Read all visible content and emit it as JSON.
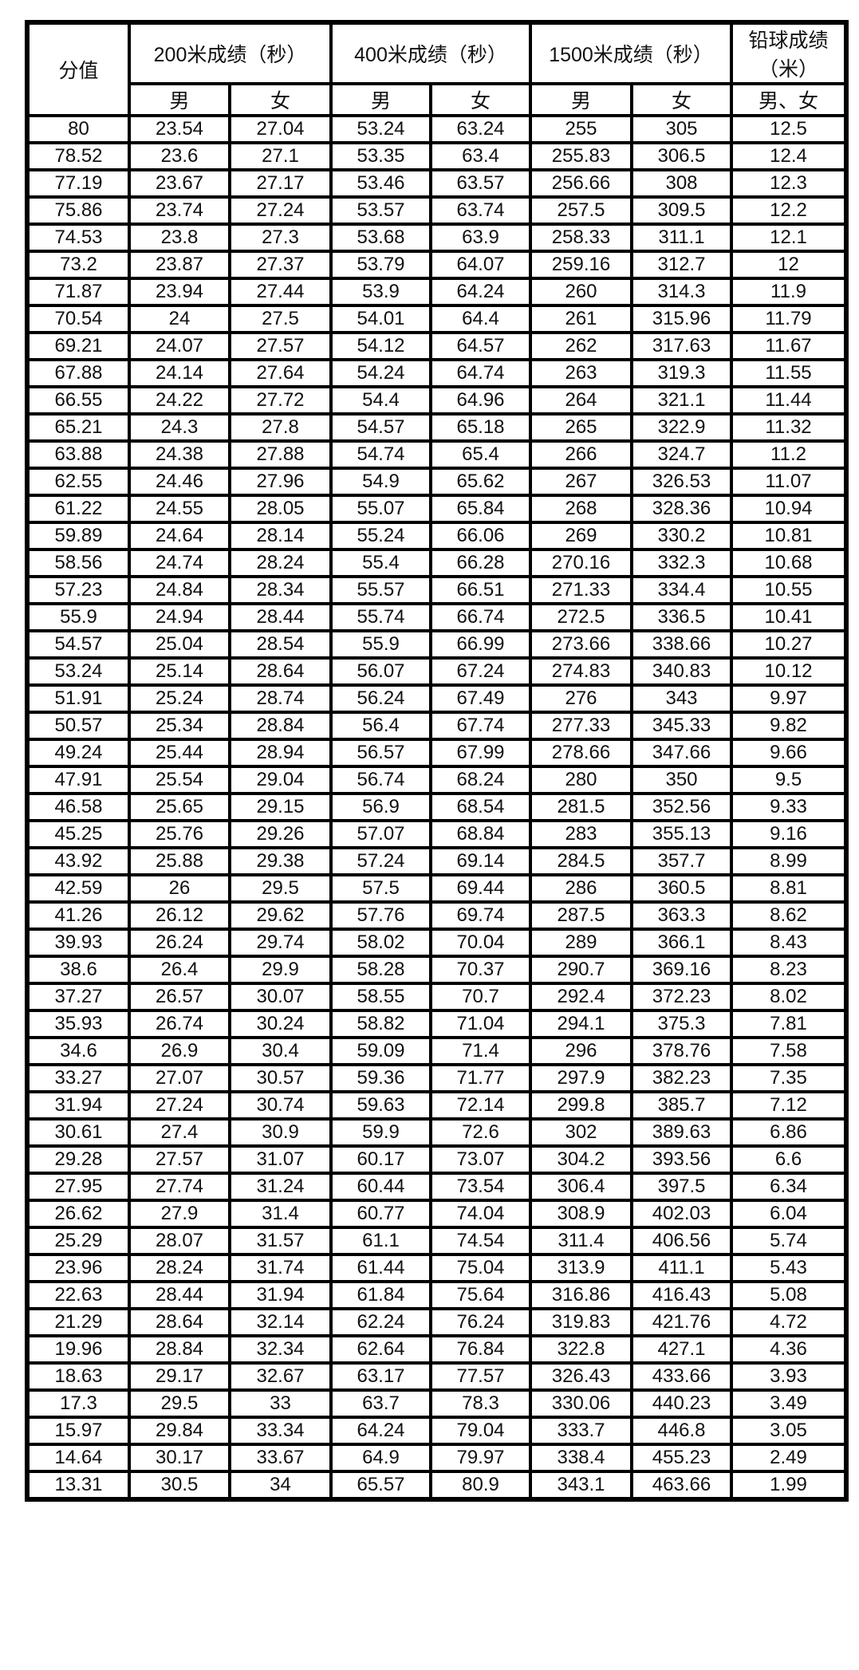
{
  "header": {
    "score": "分值",
    "groups": [
      "200米成绩（秒）",
      "400米成绩（秒）",
      "1500米成绩（秒）",
      "铅球成绩（米）"
    ],
    "sub": [
      "男",
      "女",
      "男",
      "女",
      "男",
      "女",
      "男、女"
    ]
  },
  "rows": [
    [
      "80",
      "23.54",
      "27.04",
      "53.24",
      "63.24",
      "255",
      "305",
      "12.5"
    ],
    [
      "78.52",
      "23.6",
      "27.1",
      "53.35",
      "63.4",
      "255.83",
      "306.5",
      "12.4"
    ],
    [
      "77.19",
      "23.67",
      "27.17",
      "53.46",
      "63.57",
      "256.66",
      "308",
      "12.3"
    ],
    [
      "75.86",
      "23.74",
      "27.24",
      "53.57",
      "63.74",
      "257.5",
      "309.5",
      "12.2"
    ],
    [
      "74.53",
      "23.8",
      "27.3",
      "53.68",
      "63.9",
      "258.33",
      "311.1",
      "12.1"
    ],
    [
      "73.2",
      "23.87",
      "27.37",
      "53.79",
      "64.07",
      "259.16",
      "312.7",
      "12"
    ],
    [
      "71.87",
      "23.94",
      "27.44",
      "53.9",
      "64.24",
      "260",
      "314.3",
      "11.9"
    ],
    [
      "70.54",
      "24",
      "27.5",
      "54.01",
      "64.4",
      "261",
      "315.96",
      "11.79"
    ],
    [
      "69.21",
      "24.07",
      "27.57",
      "54.12",
      "64.57",
      "262",
      "317.63",
      "11.67"
    ],
    [
      "67.88",
      "24.14",
      "27.64",
      "54.24",
      "64.74",
      "263",
      "319.3",
      "11.55"
    ],
    [
      "66.55",
      "24.22",
      "27.72",
      "54.4",
      "64.96",
      "264",
      "321.1",
      "11.44"
    ],
    [
      "65.21",
      "24.3",
      "27.8",
      "54.57",
      "65.18",
      "265",
      "322.9",
      "11.32"
    ],
    [
      "63.88",
      "24.38",
      "27.88",
      "54.74",
      "65.4",
      "266",
      "324.7",
      "11.2"
    ],
    [
      "62.55",
      "24.46",
      "27.96",
      "54.9",
      "65.62",
      "267",
      "326.53",
      "11.07"
    ],
    [
      "61.22",
      "24.55",
      "28.05",
      "55.07",
      "65.84",
      "268",
      "328.36",
      "10.94"
    ],
    [
      "59.89",
      "24.64",
      "28.14",
      "55.24",
      "66.06",
      "269",
      "330.2",
      "10.81"
    ],
    [
      "58.56",
      "24.74",
      "28.24",
      "55.4",
      "66.28",
      "270.16",
      "332.3",
      "10.68"
    ],
    [
      "57.23",
      "24.84",
      "28.34",
      "55.57",
      "66.51",
      "271.33",
      "334.4",
      "10.55"
    ],
    [
      "55.9",
      "24.94",
      "28.44",
      "55.74",
      "66.74",
      "272.5",
      "336.5",
      "10.41"
    ],
    [
      "54.57",
      "25.04",
      "28.54",
      "55.9",
      "66.99",
      "273.66",
      "338.66",
      "10.27"
    ],
    [
      "53.24",
      "25.14",
      "28.64",
      "56.07",
      "67.24",
      "274.83",
      "340.83",
      "10.12"
    ],
    [
      "51.91",
      "25.24",
      "28.74",
      "56.24",
      "67.49",
      "276",
      "343",
      "9.97"
    ],
    [
      "50.57",
      "25.34",
      "28.84",
      "56.4",
      "67.74",
      "277.33",
      "345.33",
      "9.82"
    ],
    [
      "49.24",
      "25.44",
      "28.94",
      "56.57",
      "67.99",
      "278.66",
      "347.66",
      "9.66"
    ],
    [
      "47.91",
      "25.54",
      "29.04",
      "56.74",
      "68.24",
      "280",
      "350",
      "9.5"
    ],
    [
      "46.58",
      "25.65",
      "29.15",
      "56.9",
      "68.54",
      "281.5",
      "352.56",
      "9.33"
    ],
    [
      "45.25",
      "25.76",
      "29.26",
      "57.07",
      "68.84",
      "283",
      "355.13",
      "9.16"
    ],
    [
      "43.92",
      "25.88",
      "29.38",
      "57.24",
      "69.14",
      "284.5",
      "357.7",
      "8.99"
    ],
    [
      "42.59",
      "26",
      "29.5",
      "57.5",
      "69.44",
      "286",
      "360.5",
      "8.81"
    ],
    [
      "41.26",
      "26.12",
      "29.62",
      "57.76",
      "69.74",
      "287.5",
      "363.3",
      "8.62"
    ],
    [
      "39.93",
      "26.24",
      "29.74",
      "58.02",
      "70.04",
      "289",
      "366.1",
      "8.43"
    ],
    [
      "38.6",
      "26.4",
      "29.9",
      "58.28",
      "70.37",
      "290.7",
      "369.16",
      "8.23"
    ],
    [
      "37.27",
      "26.57",
      "30.07",
      "58.55",
      "70.7",
      "292.4",
      "372.23",
      "8.02"
    ],
    [
      "35.93",
      "26.74",
      "30.24",
      "58.82",
      "71.04",
      "294.1",
      "375.3",
      "7.81"
    ],
    [
      "34.6",
      "26.9",
      "30.4",
      "59.09",
      "71.4",
      "296",
      "378.76",
      "7.58"
    ],
    [
      "33.27",
      "27.07",
      "30.57",
      "59.36",
      "71.77",
      "297.9",
      "382.23",
      "7.35"
    ],
    [
      "31.94",
      "27.24",
      "30.74",
      "59.63",
      "72.14",
      "299.8",
      "385.7",
      "7.12"
    ],
    [
      "30.61",
      "27.4",
      "30.9",
      "59.9",
      "72.6",
      "302",
      "389.63",
      "6.86"
    ],
    [
      "29.28",
      "27.57",
      "31.07",
      "60.17",
      "73.07",
      "304.2",
      "393.56",
      "6.6"
    ],
    [
      "27.95",
      "27.74",
      "31.24",
      "60.44",
      "73.54",
      "306.4",
      "397.5",
      "6.34"
    ],
    [
      "26.62",
      "27.9",
      "31.4",
      "60.77",
      "74.04",
      "308.9",
      "402.03",
      "6.04"
    ],
    [
      "25.29",
      "28.07",
      "31.57",
      "61.1",
      "74.54",
      "311.4",
      "406.56",
      "5.74"
    ],
    [
      "23.96",
      "28.24",
      "31.74",
      "61.44",
      "75.04",
      "313.9",
      "411.1",
      "5.43"
    ],
    [
      "22.63",
      "28.44",
      "31.94",
      "61.84",
      "75.64",
      "316.86",
      "416.43",
      "5.08"
    ],
    [
      "21.29",
      "28.64",
      "32.14",
      "62.24",
      "76.24",
      "319.83",
      "421.76",
      "4.72"
    ],
    [
      "19.96",
      "28.84",
      "32.34",
      "62.64",
      "76.84",
      "322.8",
      "427.1",
      "4.36"
    ],
    [
      "18.63",
      "29.17",
      "32.67",
      "63.17",
      "77.57",
      "326.43",
      "433.66",
      "3.93"
    ],
    [
      "17.3",
      "29.5",
      "33",
      "63.7",
      "78.3",
      "330.06",
      "440.23",
      "3.49"
    ],
    [
      "15.97",
      "29.84",
      "33.34",
      "64.24",
      "79.04",
      "333.7",
      "446.8",
      "3.05"
    ],
    [
      "14.64",
      "30.17",
      "33.67",
      "64.9",
      "79.97",
      "338.4",
      "455.23",
      "2.49"
    ],
    [
      "13.31",
      "30.5",
      "34",
      "65.57",
      "80.9",
      "343.1",
      "463.66",
      "1.99"
    ]
  ]
}
